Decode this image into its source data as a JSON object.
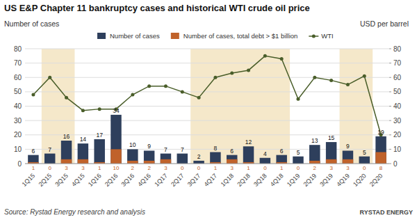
{
  "chart_data": {
    "type": "bar",
    "title": "US E&P Chapter 11 bankruptcy cases and historical WTI crude oil price",
    "y_label": "Number of cases",
    "y2_label": "USD per barrel",
    "annotations": [
      "Source: Rystad Energy research and analysis",
      "RYSTAD ENERGY"
    ],
    "categories": [
      "1Q15",
      "2Q15",
      "3Q15",
      "4Q15",
      "1Q16",
      "2Q16",
      "3Q16",
      "4Q16",
      "1Q17",
      "2Q17",
      "3Q17",
      "4Q17",
      "1Q18",
      "2Q18",
      "3Q18",
      "4Q18",
      "1Q19",
      "2Q19",
      "3Q19",
      "4Q19",
      "1Q20",
      "2Q20"
    ],
    "series": [
      {
        "name": "Number of cases",
        "type": "bar",
        "color": "#2e3f5c",
        "data_labels": true,
        "values": [
          6,
          7,
          16,
          14,
          17,
          34,
          10,
          9,
          7,
          7,
          2,
          8,
          6,
          12,
          4,
          6,
          5,
          13,
          15,
          9,
          5,
          19
        ]
      },
      {
        "name": "Number of cases, total debt > $1 billion",
        "type": "bar",
        "color": "#c0622a",
        "data_labels": true,
        "values": [
          1,
          0,
          3,
          3,
          1,
          10,
          2,
          2,
          3,
          0,
          0,
          1,
          3,
          1,
          0,
          1,
          0,
          2,
          3,
          3,
          0,
          8
        ]
      },
      {
        "name": "WTI",
        "type": "line",
        "axis": "y2",
        "color": "#4a5e2a",
        "marker": "circle",
        "data_labels": false,
        "values": [
          48,
          60,
          46,
          37,
          38,
          38,
          48,
          54,
          54,
          50,
          46,
          60,
          63,
          65,
          75,
          73,
          45,
          60,
          58,
          55,
          61,
          20
        ]
      }
    ],
    "shaded_regions": [
      [
        "2Q15",
        "3Q15"
      ],
      [
        "3Q17",
        "4Q18"
      ],
      [
        "4Q19",
        "1Q20"
      ]
    ],
    "shade_color": "#f5e8ca",
    "ylim": [
      0,
      80
    ],
    "yticks": [
      0,
      10,
      20,
      30,
      40,
      50,
      60,
      70,
      80
    ],
    "y2lim": [
      0,
      80
    ],
    "y2ticks": [
      0,
      10,
      20,
      30,
      40,
      50,
      60,
      70,
      80
    ],
    "grid": true,
    "legend": "top"
  }
}
